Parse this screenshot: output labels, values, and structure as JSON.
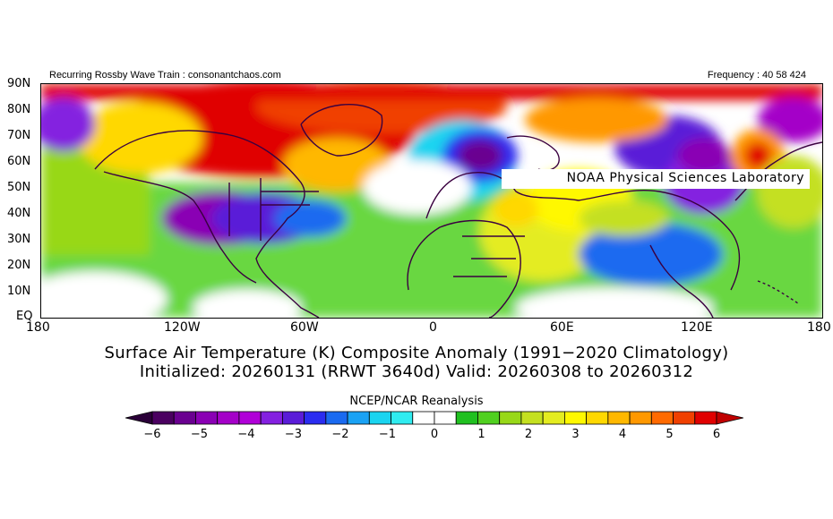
{
  "header": {
    "left_text": "Recurring Rossby Wave Train : consonantchaos.com",
    "right_text": "Frequency : 40 58 424",
    "lab_label": "NOAA Physical Sciences Laboratory"
  },
  "map": {
    "lat_labels": [
      "90N",
      "80N",
      "70N",
      "60N",
      "50N",
      "40N",
      "30N",
      "20N",
      "10N",
      "EQ"
    ],
    "lon_labels": [
      "180",
      "120W",
      "60W",
      "0",
      "60E",
      "120E",
      "180"
    ]
  },
  "title": {
    "line1": "Surface Air Temperature (K) Composite Anomaly (1991−2020 Climatology)",
    "line2": "Initialized: 20260131 (RRWT 3640d) Valid: 20260308 to 20260312"
  },
  "colorbar": {
    "title": "NCEP/NCAR Reanalysis",
    "tick_labels": [
      "−6",
      "−5",
      "−4",
      "−3",
      "−2",
      "−1",
      "0",
      "1",
      "2",
      "3",
      "4",
      "5",
      "6"
    ],
    "colors": [
      "#4a0060",
      "#6a0090",
      "#8a00b4",
      "#a400c8",
      "#b000d8",
      "#8420e0",
      "#5a1cd8",
      "#2a2cf0",
      "#1a6af0",
      "#1aa2f4",
      "#1ad4f0",
      "#30ecf0",
      "#ffffff",
      "#ffffff",
      "#20c020",
      "#50d020",
      "#98d818",
      "#c4e020",
      "#e4ec20",
      "#fff800",
      "#ffd800",
      "#ffb800",
      "#ff9800",
      "#ff6a00",
      "#f04000",
      "#e00000"
    ],
    "end_left": "#2a0038",
    "end_right": "#c00000"
  }
}
